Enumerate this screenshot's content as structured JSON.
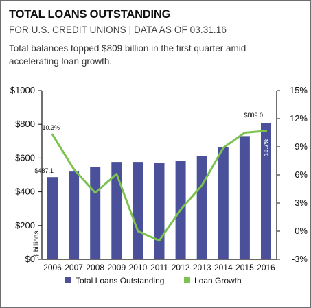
{
  "header": {
    "title": "TOTAL LOANS OUTSTANDING",
    "subtitle": "FOR U.S. CREDIT UNIONS | DATA AS OF 03.31.16",
    "description": "Total balances topped $809 billion in the first quarter amid accelerating loan growth."
  },
  "chart_data": {
    "type": "bar+line",
    "categories": [
      "2006",
      "2007",
      "2008",
      "2009",
      "2010",
      "2011",
      "2012",
      "2013",
      "2014",
      "2015",
      "2016"
    ],
    "series": [
      {
        "name": "Total Loans Outstanding",
        "type": "bar",
        "axis": "left",
        "color": "#4a519a",
        "values": [
          487.1,
          520,
          545,
          577,
          577,
          570,
          582,
          610,
          665,
          730,
          809.0
        ]
      },
      {
        "name": "Loan Growth",
        "type": "line",
        "axis": "right",
        "color": "#7cc24f",
        "values": [
          10.3,
          6.6,
          4.1,
          6.1,
          0.0,
          -1.0,
          2.3,
          4.9,
          8.9,
          10.5,
          10.7
        ]
      }
    ],
    "y_left": {
      "label": "$ billions",
      "ylim": [
        0,
        1000
      ],
      "ticks": [
        0,
        200,
        400,
        600,
        800,
        1000
      ],
      "tick_labels": [
        "$0",
        "$200",
        "$400",
        "$600",
        "$800",
        "$1000"
      ]
    },
    "y_right": {
      "ylim": [
        -3,
        15
      ],
      "ticks": [
        -3,
        0,
        3,
        6,
        9,
        12,
        15
      ],
      "tick_labels": [
        "-3%",
        "0%",
        "3%",
        "6%",
        "9%",
        "12%",
        "15%"
      ]
    },
    "annotations": [
      {
        "text": "$487.1",
        "series": 0,
        "index": 0
      },
      {
        "text": "$809.0",
        "series": 0,
        "index": 10
      },
      {
        "text": "10.3%",
        "series": 1,
        "index": 0
      },
      {
        "text": "10.7%",
        "series": 1,
        "index": 10
      }
    ],
    "grid": false,
    "legend": "bottom"
  }
}
